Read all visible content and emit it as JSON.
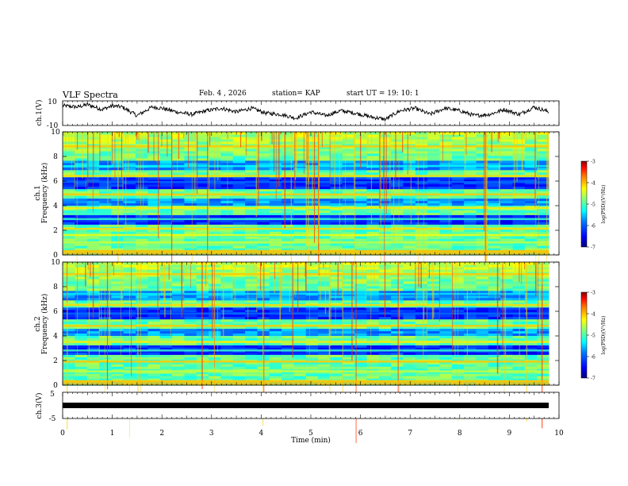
{
  "header": {
    "title": "VLF Spectra",
    "date": "Feb. 4 , 2026",
    "station": "station= KAP",
    "start": "start  UT =   19: 10: 1"
  },
  "colors": {
    "trace": "#000000",
    "colormap": [
      "#00007f",
      "#0000ff",
      "#007fff",
      "#00ffff",
      "#7fff7f",
      "#ffff00",
      "#ff7f00",
      "#ff0000",
      "#7f0000"
    ]
  },
  "chart_data": [
    {
      "id": "ch1-volt",
      "type": "line",
      "ylabel": "ch.1(V)",
      "ylim": [
        -10,
        10
      ],
      "ytick_labels": [
        "10",
        "-10"
      ],
      "xlim": [
        0,
        10
      ],
      "description_values": {
        "x": [
          0,
          0.3,
          0.5,
          0.8,
          1.0,
          1.2,
          1.5,
          1.8,
          2.0,
          2.3,
          2.6,
          2.9,
          3.2,
          3.5,
          3.8,
          4.1,
          4.4,
          4.7,
          5.0,
          5.3,
          5.6,
          5.9,
          6.2,
          6.5,
          6.8,
          7.1,
          7.4,
          7.7,
          8.0,
          8.3,
          8.6,
          8.9,
          9.2,
          9.5,
          9.8
        ],
        "y": [
          6,
          5,
          7,
          3,
          6,
          5,
          -2,
          5,
          4,
          1,
          -1,
          2,
          4,
          1,
          4,
          0,
          -1,
          -4,
          1,
          -2,
          2,
          0,
          -3,
          -5,
          2,
          4,
          -1,
          4,
          2,
          -2,
          -1,
          3,
          -1,
          5,
          1
        ]
      }
    },
    {
      "id": "ch1-spectrogram",
      "type": "heatmap",
      "ylabel": "ch.1\nFrequency (kHz)",
      "ylabel_line1": "ch.1",
      "ylabel_line2": "Frequency (kHz)",
      "ylim": [
        0,
        10
      ],
      "ytick_labels": [
        "0",
        "2",
        "4",
        "6",
        "8",
        "10"
      ],
      "xlim": [
        0,
        10
      ],
      "data_extent_x": [
        0,
        9.8
      ],
      "colorbar": {
        "label": "log(PSD)(V²/Hz)",
        "range": [
          -7,
          -3
        ],
        "ticks": [
          "-3",
          "-4",
          "-5",
          "-6",
          "-7"
        ]
      },
      "bands_kHz": [
        {
          "f": 0.25,
          "level": 0.55
        },
        {
          "f": 1.0,
          "level": 0.5
        },
        {
          "f": 1.6,
          "level": 0.55
        },
        {
          "f": 2.1,
          "level": 0.6
        },
        {
          "f": 2.9,
          "level": 0.35
        },
        {
          "f": 3.8,
          "level": 0.58
        },
        {
          "f": 4.9,
          "level": 0.62
        },
        {
          "f": 5.9,
          "level": 0.15
        },
        {
          "f": 6.4,
          "level": 0.6
        },
        {
          "f": 7.2,
          "level": 0.3
        },
        {
          "f": 8.8,
          "level": 0.62
        }
      ]
    },
    {
      "id": "ch2-spectrogram",
      "type": "heatmap",
      "ylabel": "ch.2\nFrequency (kHz)",
      "ylabel_line1": "ch.2",
      "ylabel_line2": "Frequency (kHz)",
      "ylim": [
        0,
        10
      ],
      "ytick_labels": [
        "0",
        "2",
        "4",
        "6",
        "8",
        "10"
      ],
      "xlim": [
        0,
        10
      ],
      "data_extent_x": [
        0,
        9.8
      ],
      "colorbar": {
        "label": "log(PSD)(V²/Hz)",
        "range": [
          -7,
          -3
        ],
        "ticks": [
          "-3",
          "-4",
          "-5",
          "-6",
          "-7"
        ]
      },
      "bands_kHz": [
        {
          "f": 0.3,
          "level": 0.55
        },
        {
          "f": 1.1,
          "level": 0.5
        },
        {
          "f": 1.9,
          "level": 0.62
        },
        {
          "f": 2.8,
          "level": 0.35
        },
        {
          "f": 3.5,
          "level": 0.58
        },
        {
          "f": 4.8,
          "level": 0.62
        },
        {
          "f": 5.8,
          "level": 0.15
        },
        {
          "f": 6.5,
          "level": 0.6
        },
        {
          "f": 7.4,
          "level": 0.28
        },
        {
          "f": 9.0,
          "level": 0.62
        }
      ]
    },
    {
      "id": "ch3-volt",
      "type": "line",
      "ylabel": "ch.3(V)",
      "ylim": [
        -5,
        5
      ],
      "ytick_labels": [
        "5",
        "-5"
      ],
      "xlim": [
        0,
        10
      ],
      "description_values": {
        "x": [
          0,
          9.8
        ],
        "y": [
          0,
          0
        ]
      }
    }
  ],
  "xaxis": {
    "label": "Time  (min)",
    "ticks": [
      "0",
      "1",
      "2",
      "3",
      "4",
      "5",
      "6",
      "7",
      "8",
      "9",
      "10"
    ],
    "range": [
      0,
      10
    ]
  }
}
